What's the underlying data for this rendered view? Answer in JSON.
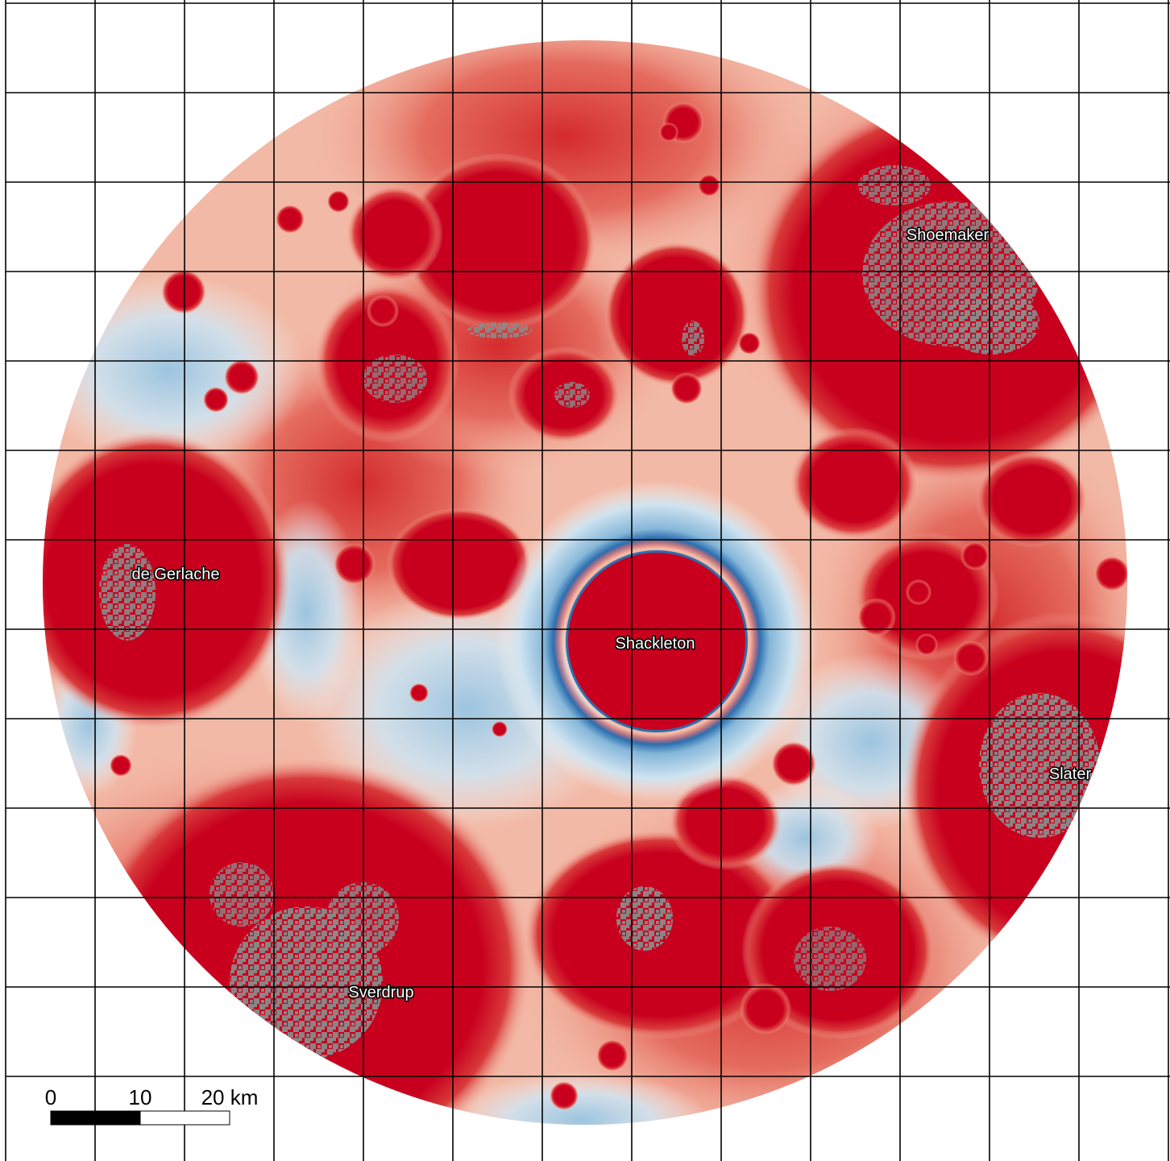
{
  "map": {
    "colors": {
      "background": "#ffffff",
      "grid_line": "#000000",
      "deep_red": "#c8001e",
      "mid_red": "#dd4a4a",
      "light_red": "#f1a490",
      "pale": "#f9efec",
      "light_blue": "#cfe3f0",
      "mid_blue": "#86b7d9",
      "dark_blue": "#2b6fb0",
      "no_data_gray": "#8a8a8a"
    },
    "crater_labels": {
      "shoemaker": "Shoemaker",
      "de_gerlache": "de Gerlache",
      "shackleton": "Shackleton",
      "slater": "Slater",
      "sverdrup": "Sverdrup"
    },
    "scale_bar": {
      "label_0": "0",
      "label_10": "10",
      "label_20": "20 km",
      "fill_color": "#000000",
      "empty_color": "#ffffff"
    }
  }
}
